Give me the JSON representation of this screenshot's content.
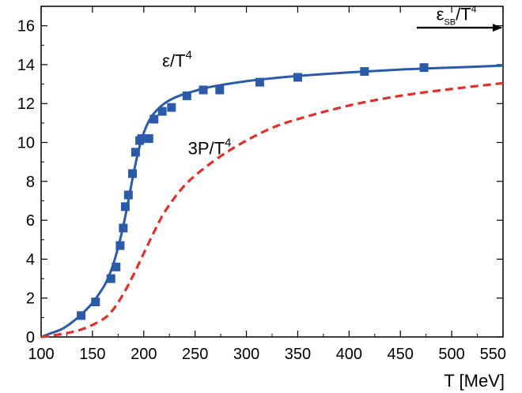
{
  "chart_data": {
    "type": "line",
    "xlabel": "T [MeV]",
    "ylabel": "",
    "xlim": [
      100,
      550
    ],
    "ylim": [
      0,
      17
    ],
    "xticks": [
      100,
      150,
      200,
      250,
      300,
      350,
      400,
      450,
      500,
      550
    ],
    "yticks": [
      0,
      2,
      4,
      6,
      8,
      10,
      12,
      14,
      16
    ],
    "grid": false,
    "series": [
      {
        "name": "ε/T⁴",
        "style": "solid",
        "color": "#2a5aa8",
        "x": [
          100,
          110,
          120,
          130,
          140,
          150,
          160,
          165,
          170,
          175,
          180,
          185,
          190,
          195,
          200,
          205,
          210,
          220,
          230,
          240,
          250,
          260,
          275,
          300,
          325,
          350,
          400,
          450,
          500,
          550
        ],
        "y": [
          0.0,
          0.2,
          0.4,
          0.75,
          1.2,
          1.75,
          2.5,
          3.0,
          3.7,
          4.6,
          5.7,
          7.0,
          8.4,
          9.6,
          10.5,
          11.1,
          11.5,
          12.0,
          12.3,
          12.5,
          12.65,
          12.8,
          12.95,
          13.15,
          13.3,
          13.42,
          13.6,
          13.75,
          13.85,
          13.95
        ]
      },
      {
        "name": "3P/T⁴",
        "style": "dashed",
        "color": "#e0302a",
        "x": [
          100,
          120,
          140,
          160,
          170,
          180,
          190,
          200,
          210,
          220,
          235,
          250,
          275,
          300,
          325,
          350,
          400,
          450,
          500,
          550
        ],
        "y": [
          0.0,
          0.15,
          0.4,
          0.9,
          1.4,
          2.2,
          3.2,
          4.3,
          5.4,
          6.4,
          7.5,
          8.3,
          9.3,
          10.1,
          10.75,
          11.2,
          11.9,
          12.4,
          12.75,
          13.05
        ]
      }
    ],
    "markers": {
      "series": "ε/T⁴",
      "shape": "square",
      "color": "#2a5aa8",
      "x": [
        139,
        153,
        168,
        173,
        177,
        180,
        182,
        185,
        189,
        192,
        196,
        198,
        205,
        210,
        218,
        227,
        242,
        258,
        274,
        313,
        350,
        415,
        473
      ],
      "y": [
        1.1,
        1.8,
        3.0,
        3.6,
        4.7,
        5.6,
        6.7,
        7.3,
        8.4,
        9.5,
        10.1,
        10.2,
        10.2,
        11.2,
        11.6,
        11.8,
        12.4,
        12.7,
        12.7,
        13.1,
        13.35,
        13.65,
        13.85
      ]
    },
    "annotations": [
      {
        "text": "ε/T⁴",
        "x": 218,
        "y": 13.9,
        "for": "ε/T⁴"
      },
      {
        "text": "3P/T⁴",
        "x": 243,
        "y": 9.4,
        "for": "3P/T⁴"
      },
      {
        "text": "ε_SB/T⁴",
        "x": 485,
        "y": 16.3,
        "arrow": {
          "from": [
            466,
            15.9
          ],
          "to": [
            550,
            15.9
          ]
        }
      }
    ]
  }
}
